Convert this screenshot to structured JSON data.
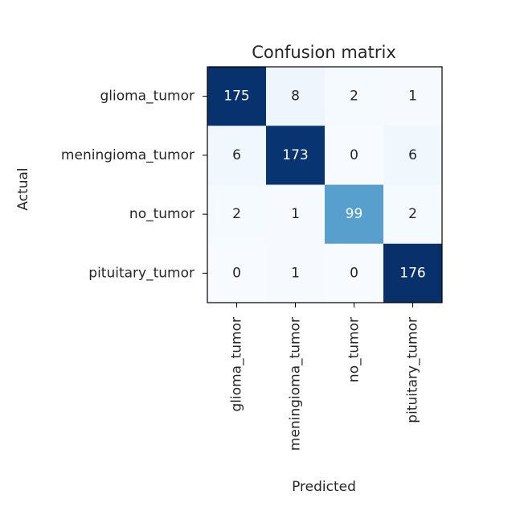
{
  "chart_data": {
    "type": "heatmap",
    "title": "Confusion matrix",
    "xlabel": "Predicted",
    "ylabel": "Actual",
    "x_categories": [
      "glioma_tumor",
      "meningioma_tumor",
      "no_tumor",
      "pituitary_tumor"
    ],
    "y_categories": [
      "glioma_tumor",
      "meningioma_tumor",
      "no_tumor",
      "pituitary_tumor"
    ],
    "values": [
      [
        175,
        8,
        2,
        1
      ],
      [
        6,
        173,
        0,
        6
      ],
      [
        2,
        1,
        99,
        2
      ],
      [
        0,
        1,
        0,
        176
      ]
    ],
    "colormap": "Blues",
    "color_low": "#f7fbff",
    "color_high": "#08306b",
    "text_dark": "#262626",
    "text_light": "#ffffff"
  }
}
